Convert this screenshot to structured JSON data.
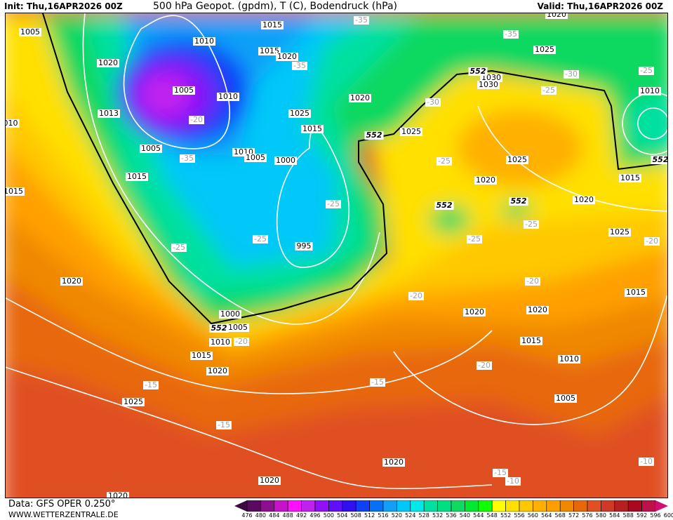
{
  "header": {
    "init": "Init: Thu,16APR2026 00Z",
    "title": "500 hPa Geopot. (gpdm), T (C), Bodendruck (hPa)",
    "valid": "Valid: Thu,16APR2026 00Z"
  },
  "footer": {
    "data_source": "Data: GFS OPER 0.250°",
    "website": "WWW.WETTERZENTRALE.DE"
  },
  "legend": {
    "labels": [
      "476",
      "480",
      "484",
      "488",
      "492",
      "496",
      "500",
      "504",
      "508",
      "512",
      "516",
      "520",
      "524",
      "528",
      "532",
      "536",
      "540",
      "544",
      "548",
      "552",
      "556",
      "560",
      "564",
      "568",
      "572",
      "576",
      "580",
      "584",
      "588",
      "592",
      "596",
      "600"
    ],
    "colors": [
      "#3c0a40",
      "#5a0a5e",
      "#8e0e90",
      "#c812c8",
      "#ff10ff",
      "#c020f0",
      "#9010f8",
      "#6010f8",
      "#3010f0",
      "#1040f8",
      "#0870f8",
      "#10a0f8",
      "#00c8f8",
      "#00e8e8",
      "#00e0a0",
      "#00e080",
      "#10d860",
      "#00e830",
      "#10ff00",
      "#ffff00",
      "#ffe000",
      "#ffc800",
      "#ffb000",
      "#ffa000",
      "#f08800",
      "#e86808",
      "#e05020",
      "#d03828",
      "#b82020",
      "#a80820",
      "#c0104a",
      "#d01070"
    ]
  },
  "map": {
    "isobar_labels": [
      "1005",
      "1015",
      "1010",
      "1015",
      "1020",
      "1020",
      "1005",
      "1010",
      "1013",
      "1025",
      "1015",
      "1005",
      "1010",
      "1005",
      "1000",
      "1015",
      "1015",
      "010",
      "1020",
      "1025",
      "1025",
      "1020",
      "1030",
      "1030",
      "1010",
      "1025",
      "1020",
      "1015",
      "1020",
      "1025",
      "995",
      "1020",
      "1000",
      "1005",
      "1010",
      "1015",
      "1020",
      "1025",
      "1020",
      "1020",
      "1015",
      "1015",
      "1010",
      "1005",
      "1020",
      "1020",
      "1020"
    ],
    "geopotential_labels": [
      "552",
      "552",
      "552",
      "552",
      "552",
      "552"
    ],
    "temperature_labels": [
      "-35",
      "-35",
      "-30",
      "-25",
      "-25",
      "-30",
      "-35",
      "-20",
      "-35",
      "-25",
      "-25",
      "-25",
      "-25",
      "-25",
      "-25",
      "-20",
      "-20",
      "-20",
      "-20",
      "-20",
      "-15",
      "-15",
      "-15",
      "-15",
      "-10",
      "-10"
    ]
  }
}
